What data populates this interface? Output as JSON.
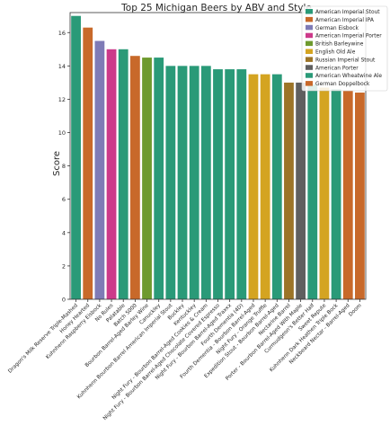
{
  "chart_data": {
    "type": "bar",
    "title": "Top 25 Michigan Beers by ABV and Style",
    "xlabel": "",
    "ylabel": "Score",
    "ylim": [
      0,
      17.2
    ],
    "yticks": [
      0,
      2,
      4,
      6,
      8,
      10,
      12,
      14,
      16
    ],
    "grid": false,
    "legend_position": "top-right",
    "legend": [
      {
        "name": "American Imperial Stout",
        "color": "#2a9a78"
      },
      {
        "name": "American Imperial IPA",
        "color": "#c8692a"
      },
      {
        "name": "German Eisbock",
        "color": "#7f7bb6"
      },
      {
        "name": "American Imperial Porter",
        "color": "#cc3a8a"
      },
      {
        "name": "British Barleywine",
        "color": "#6e9a2e"
      },
      {
        "name": "English Old Ale",
        "color": "#d4a421"
      },
      {
        "name": "Russian Imperial Stout",
        "color": "#9c7427"
      },
      {
        "name": "American Porter",
        "color": "#5f5f5f"
      },
      {
        "name": "American Wheatwine Ale",
        "color": "#2a9a78"
      },
      {
        "name": "German Doppelbock",
        "color": "#c8692a"
      }
    ],
    "categories": [
      "Dragon's Milk Reserve Triple-Mashed",
      "Honey Hearted",
      "Kuhnhenn Raspberry Eisbock",
      "No Rules",
      "Palatable",
      "Batch 5000",
      "Bourbon Barrel-Aged Barley Wine",
      "Canuckley",
      "Kuhnhenn Bourbon Barrel American Imperial Stout",
      "Buckley",
      "Kentuckley",
      "Night Fury - Bourbon Barrel-Aged Cookies & Cream",
      "Night Fury - Bourbon Barrel-Aged Chocolate Covered Espresso",
      "Night Fury - Bourbon Barrel-Aged Traxxx",
      "Fourth Dementia (4D)",
      "Fourth Dementia - Bourbon Barrel-Aged",
      "Night Fury - Orange Truffle",
      "Expedition Stout - Bourbon Barrel-Aged",
      "Nectarine Barrel",
      "Porter - Bourbon Barrel-Aged With Maple",
      "Curmudgeon's Better Half",
      "Sweet Repute",
      "Kuhnhenn Dark Heathen Triple Bock",
      "Neckbeard Nectar - Barrel-Aged",
      "Doom"
    ],
    "values": [
      17.0,
      16.3,
      15.5,
      15.0,
      15.0,
      14.6,
      14.5,
      14.5,
      14.0,
      14.0,
      14.0,
      14.0,
      13.8,
      13.8,
      13.8,
      13.5,
      13.5,
      13.5,
      13.0,
      13.0,
      12.9,
      12.7,
      12.6,
      12.5,
      12.4
    ],
    "bar_colors": [
      "#2a9a78",
      "#c8692a",
      "#7f7bb6",
      "#cc3a8a",
      "#2a9a78",
      "#c8692a",
      "#6e9a2e",
      "#2a9a78",
      "#2a9a78",
      "#2a9a78",
      "#2a9a78",
      "#2a9a78",
      "#2a9a78",
      "#2a9a78",
      "#2a9a78",
      "#d4a421",
      "#d4a421",
      "#2a9a78",
      "#9c7427",
      "#5f5f5f",
      "#2a9a78",
      "#d4a421",
      "#2a9a78",
      "#c8692a",
      "#c8692a"
    ]
  }
}
